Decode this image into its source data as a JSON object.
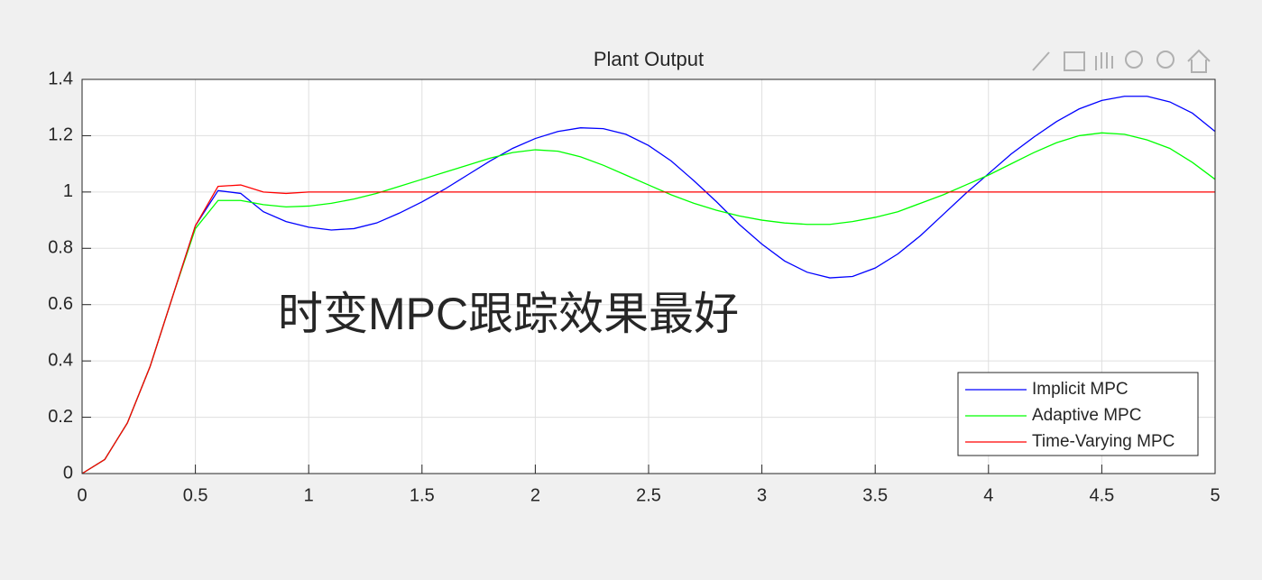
{
  "chart_data": {
    "type": "line",
    "title": "Plant Output",
    "x": [
      0,
      0.1,
      0.2,
      0.3,
      0.4,
      0.5,
      0.6,
      0.7,
      0.8,
      0.9,
      1,
      1.1,
      1.2,
      1.3,
      1.4,
      1.5,
      1.6,
      1.7,
      1.8,
      1.9,
      2,
      2.1,
      2.2,
      2.3,
      2.4,
      2.5,
      2.6,
      2.7,
      2.8,
      2.9,
      3,
      3.1,
      3.2,
      3.3,
      3.4,
      3.5,
      3.6,
      3.7,
      3.8,
      3.9,
      4,
      4.1,
      4.2,
      4.3,
      4.4,
      4.5,
      4.6,
      4.7,
      4.8,
      4.9,
      5
    ],
    "series": [
      {
        "name": "Implicit MPC",
        "color": "#0000ff",
        "values": [
          0,
          0.05,
          0.18,
          0.38,
          0.63,
          0.88,
          1.005,
          0.995,
          0.93,
          0.895,
          0.875,
          0.865,
          0.87,
          0.89,
          0.925,
          0.965,
          1.01,
          1.06,
          1.11,
          1.155,
          1.19,
          1.215,
          1.228,
          1.225,
          1.205,
          1.165,
          1.11,
          1.04,
          0.965,
          0.885,
          0.815,
          0.755,
          0.715,
          0.695,
          0.7,
          0.73,
          0.78,
          0.845,
          0.92,
          0.995,
          1.065,
          1.135,
          1.195,
          1.25,
          1.295,
          1.325,
          1.34,
          1.34,
          1.32,
          1.28,
          1.215
        ]
      },
      {
        "name": "Adaptive MPC",
        "color": "#00ff00",
        "values": [
          0,
          0.05,
          0.18,
          0.38,
          0.63,
          0.87,
          0.97,
          0.97,
          0.955,
          0.947,
          0.95,
          0.96,
          0.975,
          0.995,
          1.02,
          1.045,
          1.07,
          1.095,
          1.12,
          1.14,
          1.15,
          1.145,
          1.125,
          1.095,
          1.06,
          1.025,
          0.99,
          0.96,
          0.935,
          0.915,
          0.9,
          0.89,
          0.885,
          0.885,
          0.895,
          0.91,
          0.93,
          0.96,
          0.99,
          1.025,
          1.06,
          1.1,
          1.14,
          1.175,
          1.2,
          1.21,
          1.205,
          1.185,
          1.155,
          1.105,
          1.045
        ]
      },
      {
        "name": "Time-Varying MPC",
        "color": "#ff0000",
        "values": [
          0,
          0.05,
          0.18,
          0.38,
          0.63,
          0.88,
          1.02,
          1.025,
          1,
          0.995,
          1,
          1,
          1,
          1,
          1,
          1,
          1,
          1,
          1,
          1,
          1,
          1,
          1,
          1,
          1,
          1,
          1,
          1,
          1,
          1,
          1,
          1,
          1,
          1,
          1,
          1,
          1,
          1,
          1,
          1,
          1,
          1,
          1,
          1,
          1,
          1,
          1,
          1,
          1,
          1,
          1
        ]
      }
    ],
    "xlim": [
      0,
      5
    ],
    "xticks": [
      0,
      0.5,
      1,
      1.5,
      2,
      2.5,
      3,
      3.5,
      4,
      4.5,
      5
    ],
    "ylim": [
      0,
      1.4
    ],
    "yticks": [
      0,
      0.2,
      0.4,
      0.6,
      0.8,
      1,
      1.2,
      1.4
    ],
    "grid": true,
    "legend": "southeast",
    "annotation": {
      "text": "时变MPC跟踪效果最好",
      "color": "#ee22ee"
    }
  }
}
